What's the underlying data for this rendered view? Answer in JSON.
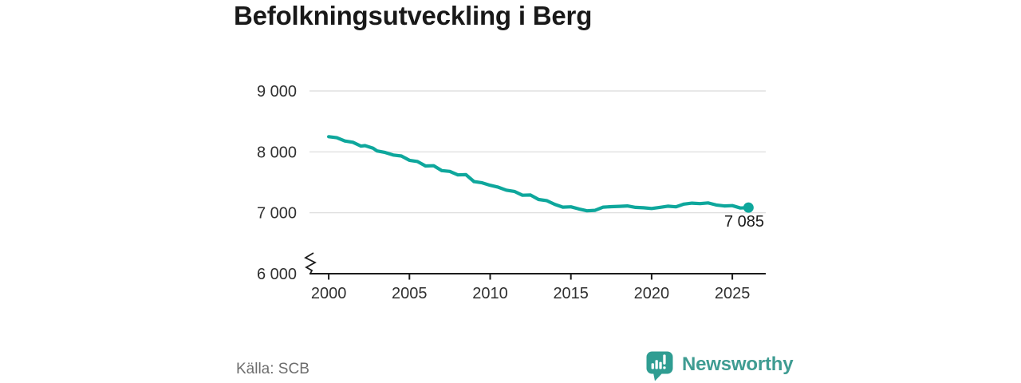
{
  "title": "Befolkningsutveckling i Berg",
  "source": "Källa: SCB",
  "brand": {
    "name": "Newsworthy",
    "icon": "bar-chart-speech-bubble-icon",
    "color": "#3f9c92"
  },
  "colors": {
    "line": "#0ea79c",
    "grid": "#d9d9d9",
    "axis": "#1c1c1c",
    "tick_text": "#303030",
    "label_text": "#1a1a1a"
  },
  "chart_data": {
    "type": "line",
    "title": "Befolkningsutveckling i Berg",
    "xlabel": "",
    "ylabel": "",
    "grid": "horizontal",
    "legend": "none",
    "axis_break": true,
    "ylim": [
      6000,
      9000
    ],
    "xlim": [
      1998.81,
      2027.07
    ],
    "yticks": [
      {
        "value": 6000,
        "label": "6 000"
      },
      {
        "value": 7000,
        "label": "7 000"
      },
      {
        "value": 8000,
        "label": "8 000"
      },
      {
        "value": 9000,
        "label": "9 000"
      }
    ],
    "xticks": [
      {
        "value": 2000,
        "label": "2000"
      },
      {
        "value": 2005,
        "label": "2005"
      },
      {
        "value": 2010,
        "label": "2010"
      },
      {
        "value": 2015,
        "label": "2015"
      },
      {
        "value": 2020,
        "label": "2020"
      },
      {
        "value": 2025,
        "label": "2025"
      }
    ],
    "points": [
      [
        2000.0,
        8250
      ],
      [
        2000.5,
        8232
      ],
      [
        2001.0,
        8178
      ],
      [
        2001.5,
        8158
      ],
      [
        2002.0,
        8095
      ],
      [
        2002.25,
        8102
      ],
      [
        2002.75,
        8060
      ],
      [
        2003.0,
        8015
      ],
      [
        2003.5,
        7990
      ],
      [
        2004.0,
        7948
      ],
      [
        2004.5,
        7932
      ],
      [
        2005.0,
        7862
      ],
      [
        2005.5,
        7842
      ],
      [
        2006.0,
        7768
      ],
      [
        2006.5,
        7772
      ],
      [
        2007.0,
        7692
      ],
      [
        2007.5,
        7680
      ],
      [
        2008.0,
        7622
      ],
      [
        2008.5,
        7626
      ],
      [
        2009.0,
        7512
      ],
      [
        2009.5,
        7492
      ],
      [
        2010.0,
        7452
      ],
      [
        2010.5,
        7420
      ],
      [
        2011.0,
        7372
      ],
      [
        2011.5,
        7350
      ],
      [
        2012.0,
        7288
      ],
      [
        2012.5,
        7292
      ],
      [
        2013.0,
        7218
      ],
      [
        2013.5,
        7200
      ],
      [
        2014.0,
        7138
      ],
      [
        2014.5,
        7092
      ],
      [
        2015.0,
        7098
      ],
      [
        2015.5,
        7062
      ],
      [
        2016.0,
        7032
      ],
      [
        2016.5,
        7040
      ],
      [
        2017.0,
        7092
      ],
      [
        2017.5,
        7100
      ],
      [
        2018.0,
        7106
      ],
      [
        2018.5,
        7112
      ],
      [
        2019.0,
        7088
      ],
      [
        2019.5,
        7082
      ],
      [
        2020.0,
        7070
      ],
      [
        2020.5,
        7088
      ],
      [
        2021.0,
        7108
      ],
      [
        2021.5,
        7098
      ],
      [
        2022.0,
        7142
      ],
      [
        2022.5,
        7158
      ],
      [
        2023.0,
        7150
      ],
      [
        2023.5,
        7162
      ],
      [
        2024.0,
        7128
      ],
      [
        2024.5,
        7112
      ],
      [
        2025.0,
        7118
      ],
      [
        2025.5,
        7078
      ],
      [
        2026.0,
        7085
      ]
    ],
    "latest": {
      "year": 2026,
      "value": 7085,
      "label": "7 085"
    }
  }
}
